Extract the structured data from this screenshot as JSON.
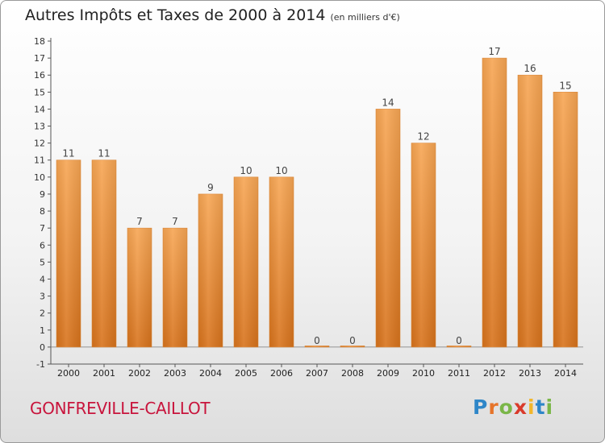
{
  "title": "Autres Impôts et Taxes de 2000 à 2014",
  "subtitle": "(en milliers d'€)",
  "location": "GONFREVILLE-CAILLOT",
  "brand": {
    "text": "Proxiti",
    "letters": [
      {
        "ch": "P",
        "color": "#2e86c8"
      },
      {
        "ch": "r",
        "color": "#e6742a"
      },
      {
        "ch": "o",
        "color": "#7ab648"
      },
      {
        "ch": "x",
        "color": "#d93a2b"
      },
      {
        "ch": "i",
        "color": "#f2b62a"
      },
      {
        "ch": "t",
        "color": "#2e86c8"
      },
      {
        "ch": "i",
        "color": "#7ab648"
      }
    ]
  },
  "colors": {
    "bar_top": "#f7a654",
    "bar_bottom": "#d8731c",
    "bar_edge": "#e08a3a",
    "city": "#c8143c"
  },
  "chart_data": {
    "type": "bar",
    "categories": [
      "2000",
      "2001",
      "2002",
      "2003",
      "2004",
      "2005",
      "2006",
      "2007",
      "2008",
      "2009",
      "2010",
      "2011",
      "2012",
      "2013",
      "2014"
    ],
    "values": [
      11,
      11,
      7,
      7,
      9,
      10,
      10,
      0,
      0,
      14,
      12,
      0,
      17,
      16,
      15
    ],
    "data_labels": [
      "11",
      "11",
      "7",
      "7",
      "9",
      "10",
      "10",
      "0",
      "0",
      "14",
      "12",
      "0",
      "17",
      "16",
      "15"
    ],
    "ylim": [
      -1,
      18
    ],
    "yticks": [
      -1,
      0,
      1,
      2,
      3,
      4,
      5,
      6,
      7,
      8,
      9,
      10,
      11,
      12,
      13,
      14,
      15,
      16,
      17,
      18
    ],
    "ytick_labels": [
      "-1",
      "0",
      "1",
      "2",
      "3",
      "4",
      "5",
      "6",
      "7",
      "8",
      "9",
      "10",
      "11",
      "12",
      "13",
      "14",
      "15",
      "16",
      "17",
      "18"
    ],
    "grid": false
  }
}
